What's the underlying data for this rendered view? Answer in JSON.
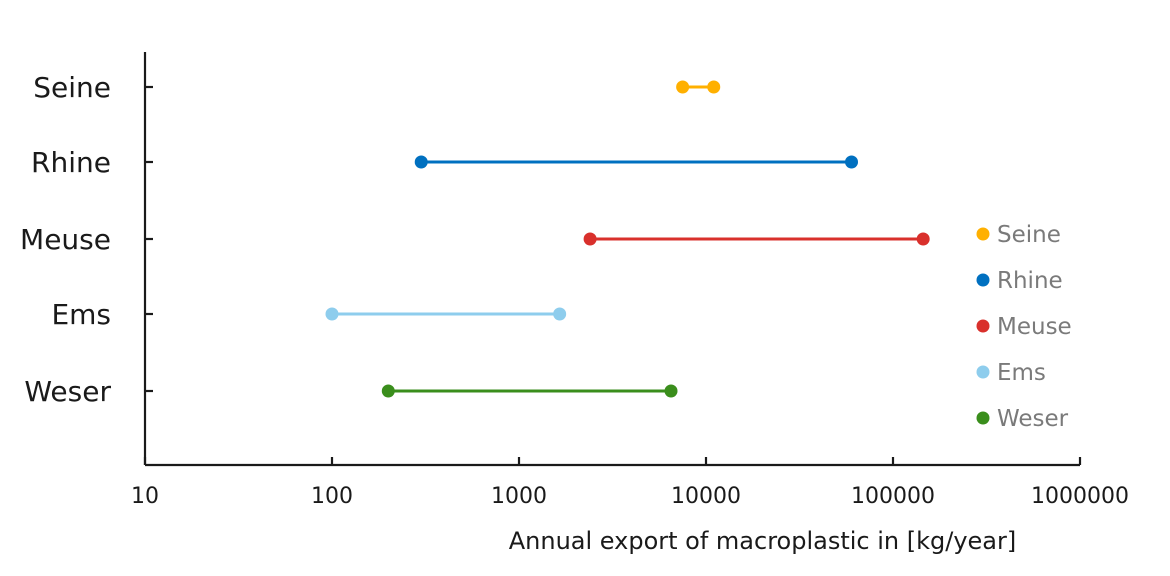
{
  "chart_data": {
    "type": "dumbbell",
    "xscale": "log",
    "xlim": [
      10,
      1000000
    ],
    "xticks": [
      "10",
      "100",
      "1000",
      "10000",
      "100000",
      "1000000"
    ],
    "xlabel": "Annual export of macroplastic in [kg/year]",
    "legend_position": "right",
    "series": [
      {
        "name": "Seine",
        "color": "#FFB000",
        "min": 7500,
        "max": 11000
      },
      {
        "name": "Rhine",
        "color": "#0070C0",
        "min": 300,
        "max": 60000
      },
      {
        "name": "Meuse",
        "color": "#D9302C",
        "min": 2400,
        "max": 145000
      },
      {
        "name": "Ems",
        "color": "#8ECDED",
        "min": 100,
        "max": 1650
      },
      {
        "name": "Weser",
        "color": "#3A8E1C",
        "min": 200,
        "max": 6500
      }
    ]
  }
}
